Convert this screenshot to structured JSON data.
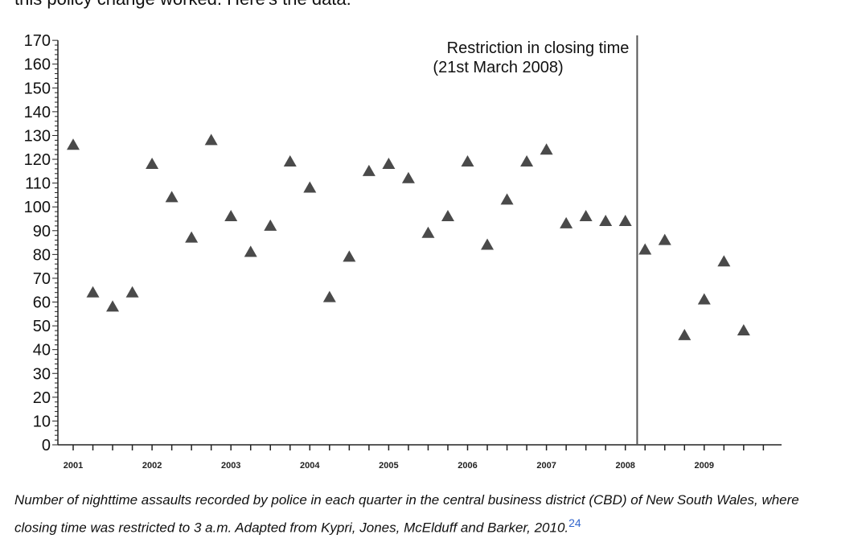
{
  "page": {
    "intro_fragment": "this policy change worked. Here's the data:",
    "caption": "Number of nighttime assaults recorded by police in each quarter in the central business district (CBD) of New South Wales, where closing time was restricted to 3 a.m. Adapted from Kypri, Jones, McElduff and Barker, 2010.",
    "footnote_ref": "24"
  },
  "chart_data": {
    "type": "scatter",
    "title": "",
    "xlabel": "",
    "ylabel": "",
    "ylim": [
      0,
      170
    ],
    "yticks": [
      0,
      10,
      20,
      30,
      40,
      50,
      60,
      70,
      80,
      90,
      100,
      110,
      120,
      130,
      140,
      150,
      160,
      170
    ],
    "xlim": [
      2001,
      2009.9
    ],
    "xticks": [
      2001,
      2002,
      2003,
      2004,
      2005,
      2006,
      2007,
      2008,
      2009
    ],
    "xtick_labels": [
      "2001",
      "2002",
      "2003",
      "2004",
      "2005",
      "2006",
      "2007",
      "2008",
      "2009"
    ],
    "marker": "triangle",
    "marker_color": "#4a4a4a",
    "grid": false,
    "points": [
      {
        "x": 2001.0,
        "y": 126
      },
      {
        "x": 2001.25,
        "y": 64
      },
      {
        "x": 2001.5,
        "y": 58
      },
      {
        "x": 2001.75,
        "y": 64
      },
      {
        "x": 2002.0,
        "y": 118
      },
      {
        "x": 2002.25,
        "y": 104
      },
      {
        "x": 2002.5,
        "y": 87
      },
      {
        "x": 2002.75,
        "y": 128
      },
      {
        "x": 2003.0,
        "y": 96
      },
      {
        "x": 2003.25,
        "y": 81
      },
      {
        "x": 2003.5,
        "y": 92
      },
      {
        "x": 2003.75,
        "y": 119
      },
      {
        "x": 2004.0,
        "y": 108
      },
      {
        "x": 2004.25,
        "y": 62
      },
      {
        "x": 2004.5,
        "y": 79
      },
      {
        "x": 2004.75,
        "y": 115
      },
      {
        "x": 2005.0,
        "y": 118
      },
      {
        "x": 2005.25,
        "y": 112
      },
      {
        "x": 2005.5,
        "y": 89
      },
      {
        "x": 2005.75,
        "y": 96
      },
      {
        "x": 2006.0,
        "y": 119
      },
      {
        "x": 2006.25,
        "y": 84
      },
      {
        "x": 2006.5,
        "y": 103
      },
      {
        "x": 2006.75,
        "y": 119
      },
      {
        "x": 2007.0,
        "y": 124
      },
      {
        "x": 2007.25,
        "y": 93
      },
      {
        "x": 2007.5,
        "y": 96
      },
      {
        "x": 2007.75,
        "y": 94
      },
      {
        "x": 2008.0,
        "y": 94
      },
      {
        "x": 2008.25,
        "y": 82
      },
      {
        "x": 2008.5,
        "y": 86
      },
      {
        "x": 2008.75,
        "y": 46
      },
      {
        "x": 2009.0,
        "y": 61
      },
      {
        "x": 2009.25,
        "y": 77
      },
      {
        "x": 2009.5,
        "y": 48
      }
    ],
    "reference_line": {
      "x": 2008.15,
      "label_line1": "Restriction in closing time",
      "label_line2": "(21st March 2008)"
    }
  }
}
